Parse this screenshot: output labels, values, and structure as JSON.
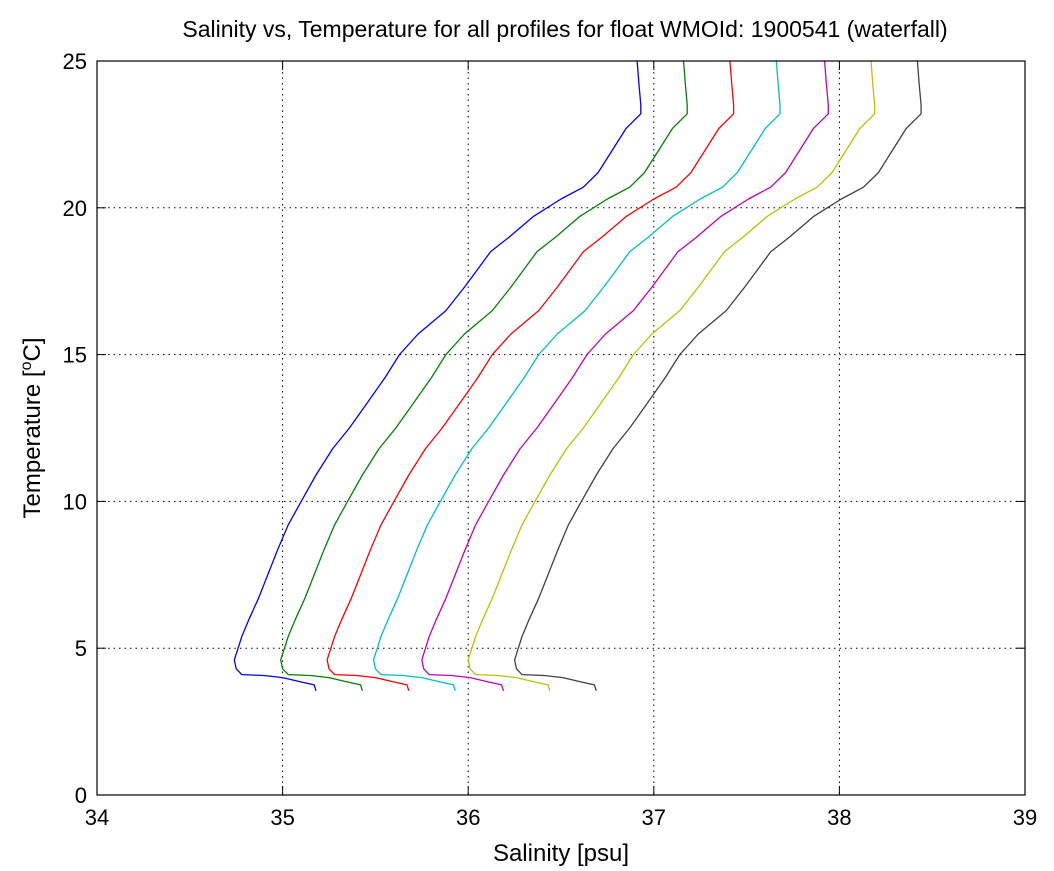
{
  "chart_data": {
    "type": "line",
    "title": "Salinity vs, Temperature for all profiles for float WMOId: 1900541 (waterfall)",
    "xlabel": "Salinity [psu]",
    "ylabel_prefix": "Temperature [",
    "ylabel_sup": "o",
    "ylabel_suffix": "C]",
    "xlim": [
      34,
      39
    ],
    "ylim": [
      0,
      25
    ],
    "xticks": [
      34,
      35,
      36,
      37,
      38,
      39
    ],
    "yticks": [
      0,
      5,
      10,
      15,
      20,
      25
    ],
    "grid": true,
    "base_profile": [
      [
        35.18,
        3.55
      ],
      [
        35.17,
        3.75
      ],
      [
        35.1,
        3.85
      ],
      [
        35.0,
        4.0
      ],
      [
        34.9,
        4.07
      ],
      [
        34.78,
        4.1
      ],
      [
        34.75,
        4.3
      ],
      [
        34.74,
        4.6
      ],
      [
        34.76,
        5.0
      ],
      [
        34.78,
        5.4
      ],
      [
        34.82,
        6.0
      ],
      [
        34.87,
        6.7
      ],
      [
        34.92,
        7.5
      ],
      [
        34.97,
        8.3
      ],
      [
        35.03,
        9.2
      ],
      [
        35.1,
        10.0
      ],
      [
        35.18,
        10.9
      ],
      [
        35.27,
        11.8
      ],
      [
        35.36,
        12.5
      ],
      [
        35.45,
        13.3
      ],
      [
        35.55,
        14.2
      ],
      [
        35.63,
        15.0
      ],
      [
        35.73,
        15.7
      ],
      [
        35.88,
        16.5
      ],
      [
        35.98,
        17.3
      ],
      [
        36.05,
        17.9
      ],
      [
        36.12,
        18.5
      ],
      [
        36.22,
        19.0
      ],
      [
        36.35,
        19.7
      ],
      [
        36.5,
        20.3
      ],
      [
        36.62,
        20.7
      ],
      [
        36.7,
        21.2
      ],
      [
        36.78,
        22.0
      ],
      [
        36.85,
        22.7
      ],
      [
        36.93,
        23.2
      ],
      [
        36.93,
        23.5
      ],
      [
        36.92,
        24.2
      ],
      [
        36.91,
        25.0
      ]
    ],
    "series": [
      {
        "color": "#0000ff",
        "offset": 0.0
      },
      {
        "color": "#008000",
        "offset": 0.25
      },
      {
        "color": "#ff0000",
        "offset": 0.5
      },
      {
        "color": "#00bfbf",
        "offset": 0.75
      },
      {
        "color": "#bf00bf",
        "offset": 1.01
      },
      {
        "color": "#bfbf00",
        "offset": 1.26
      },
      {
        "color": "#404040",
        "offset": 1.51
      }
    ]
  }
}
